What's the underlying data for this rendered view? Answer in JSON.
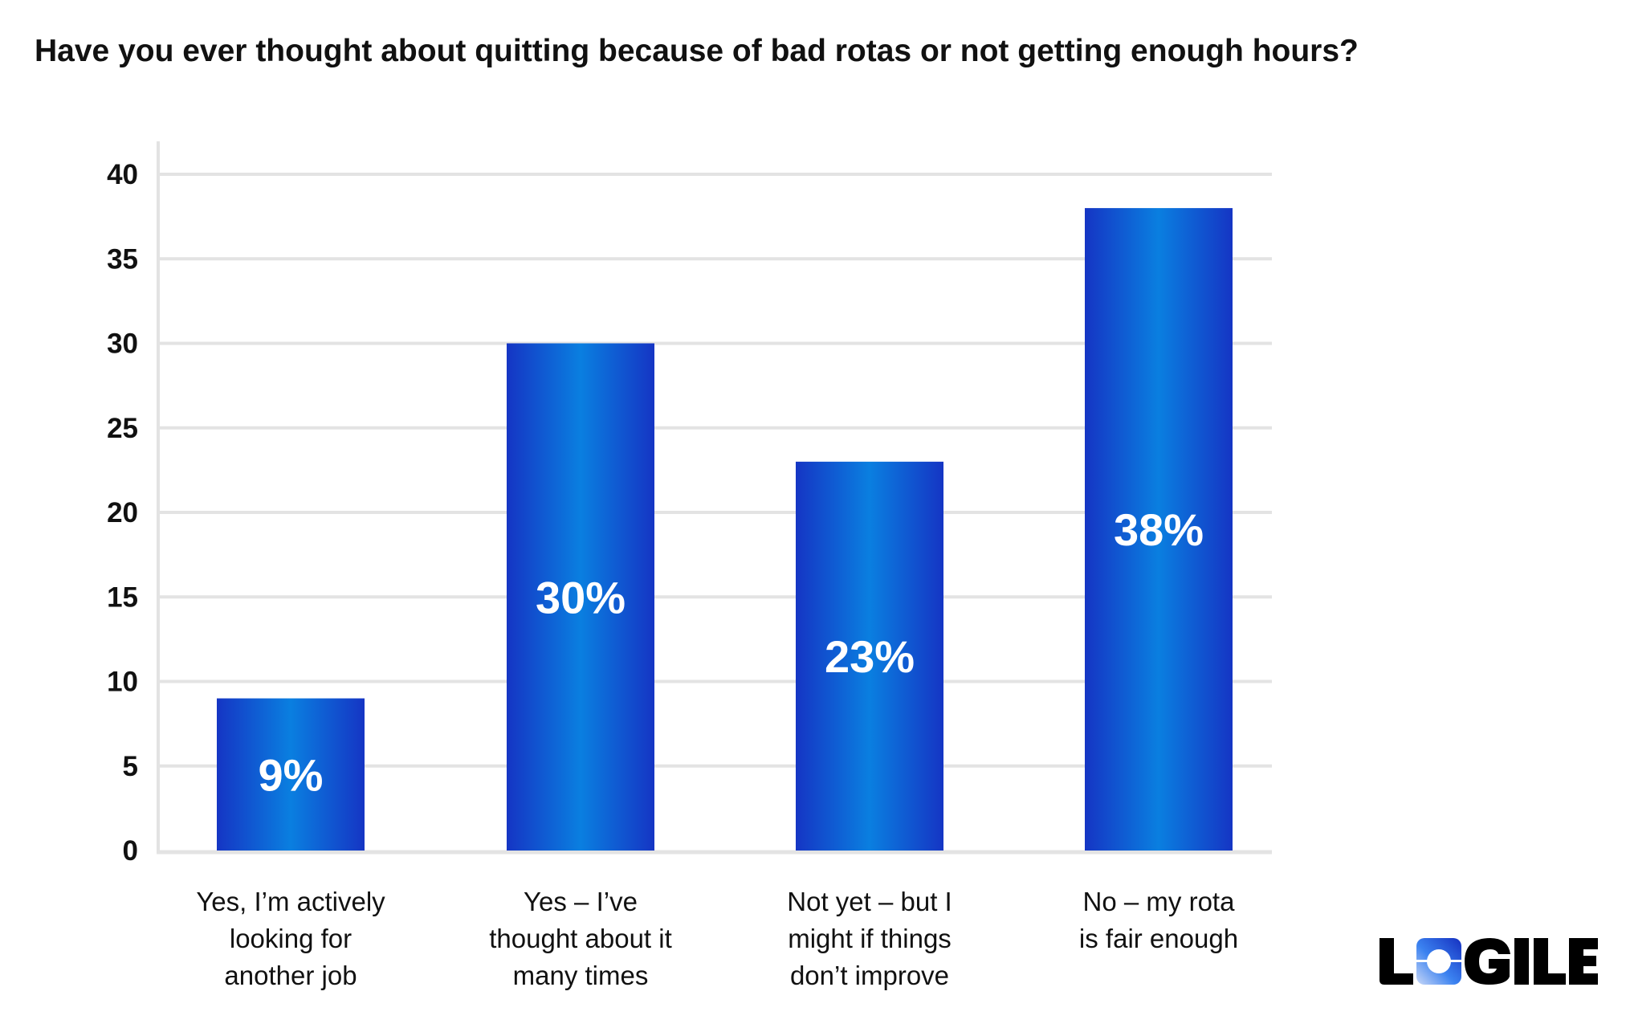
{
  "chart_data": {
    "type": "bar",
    "title": "Have you ever thought about quitting because of bad rotas or not getting enough hours?",
    "categories": [
      "Yes, I’m actively looking for another job",
      "Yes – I’ve thought about it many times",
      "Not yet – but I might if things don’t improve",
      "No – my rota is fair enough"
    ],
    "category_lines": [
      [
        "Yes, I’m actively",
        "looking for",
        "another job"
      ],
      [
        "Yes – I’ve",
        "thought about it",
        "many times"
      ],
      [
        "Not yet – but I",
        "might if things",
        "don’t improve"
      ],
      [
        "No – my rota",
        "is fair enough"
      ]
    ],
    "values": [
      9,
      30,
      23,
      38
    ],
    "data_labels": [
      "9%",
      "30%",
      "23%",
      "38%"
    ],
    "ylim": [
      0,
      40
    ],
    "yticks": [
      0,
      5,
      10,
      15,
      20,
      25,
      30,
      35,
      40
    ],
    "xlabel": "",
    "ylabel": "",
    "grid": true,
    "bar_colors": {
      "edge": "#1535c4",
      "center": "#0a7fe0"
    },
    "label_color": "#ffffff"
  },
  "logo": {
    "text": "LOGILE",
    "brand_color": "#1e63e0"
  }
}
